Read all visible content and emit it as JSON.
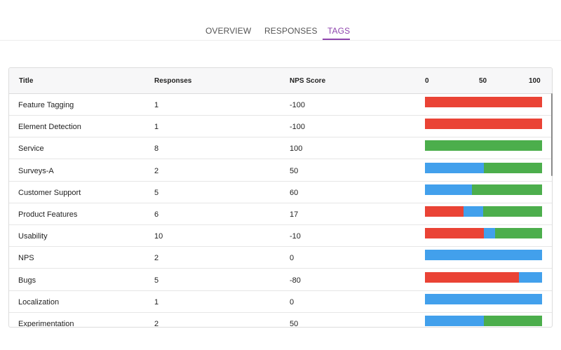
{
  "tabs": [
    {
      "label": "OVERVIEW",
      "active": false
    },
    {
      "label": "RESPONSES",
      "active": false
    },
    {
      "label": "TAGS",
      "active": true
    }
  ],
  "colors": {
    "accent": "#8e44ad",
    "detractor": "#ea4335",
    "passive": "#42a0ec",
    "promoter": "#4cae4c"
  },
  "table": {
    "headers": {
      "title": "Title",
      "responses": "Responses",
      "nps": "NPS Score"
    },
    "axis_ticks": [
      "0",
      "50",
      "100"
    ],
    "rows": [
      {
        "title": "Feature Tagging",
        "responses": "1",
        "nps": "-100",
        "distribution": {
          "detractor": 1.0,
          "passive": 0.0,
          "promoter": 0.0
        }
      },
      {
        "title": "Element Detection",
        "responses": "1",
        "nps": "-100",
        "distribution": {
          "detractor": 1.0,
          "passive": 0.0,
          "promoter": 0.0
        }
      },
      {
        "title": "Service",
        "responses": "8",
        "nps": "100",
        "distribution": {
          "detractor": 0.0,
          "passive": 0.0,
          "promoter": 1.0
        }
      },
      {
        "title": "Surveys-A",
        "responses": "2",
        "nps": "50",
        "distribution": {
          "detractor": 0.0,
          "passive": 0.5,
          "promoter": 0.5
        }
      },
      {
        "title": "Customer Support",
        "responses": "5",
        "nps": "60",
        "distribution": {
          "detractor": 0.0,
          "passive": 0.4,
          "promoter": 0.6
        }
      },
      {
        "title": "Product Features",
        "responses": "6",
        "nps": "17",
        "distribution": {
          "detractor": 0.33,
          "passive": 0.17,
          "promoter": 0.5
        }
      },
      {
        "title": "Usability",
        "responses": "10",
        "nps": "-10",
        "distribution": {
          "detractor": 0.5,
          "passive": 0.1,
          "promoter": 0.4
        }
      },
      {
        "title": "NPS",
        "responses": "2",
        "nps": "0",
        "distribution": {
          "detractor": 0.0,
          "passive": 1.0,
          "promoter": 0.0
        }
      },
      {
        "title": "Bugs",
        "responses": "5",
        "nps": "-80",
        "distribution": {
          "detractor": 0.8,
          "passive": 0.2,
          "promoter": 0.0
        }
      },
      {
        "title": "Localization",
        "responses": "1",
        "nps": "0",
        "distribution": {
          "detractor": 0.0,
          "passive": 1.0,
          "promoter": 0.0
        }
      },
      {
        "title": "Experimentation",
        "responses": "2",
        "nps": "50",
        "distribution": {
          "detractor": 0.0,
          "passive": 0.5,
          "promoter": 0.5
        }
      }
    ]
  }
}
